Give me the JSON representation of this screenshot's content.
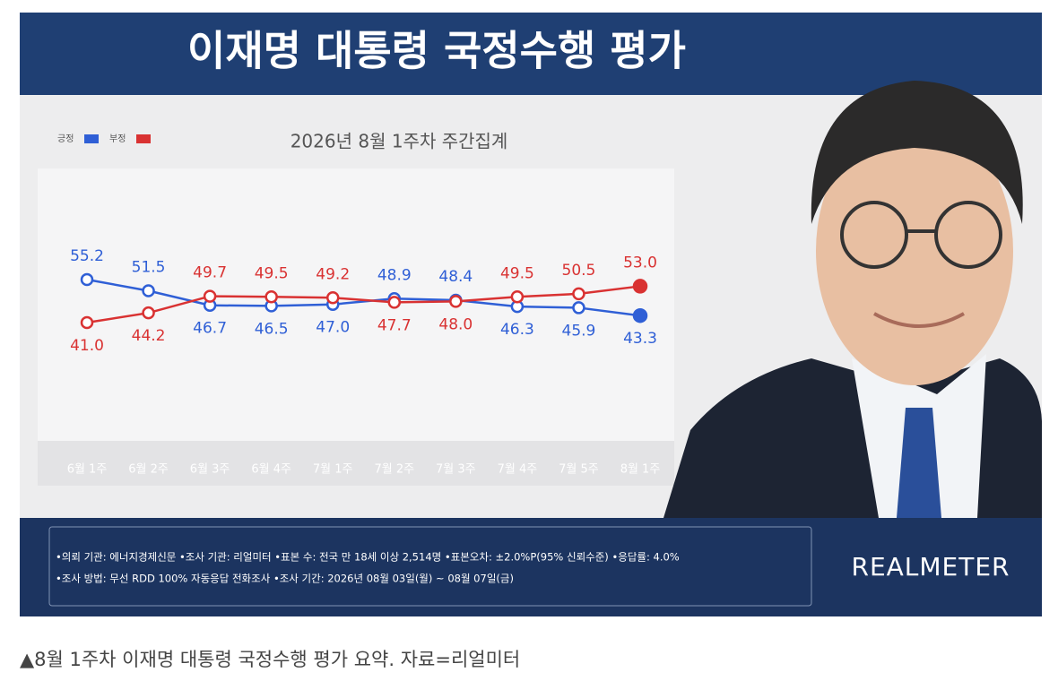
{
  "chart_data": {
    "type": "line",
    "title": "이재명 대통령 국정수행 평가",
    "subtitle": "2026년 8월 1주차 주간집계",
    "categories": [
      "6월 1주",
      "6월 2주",
      "6월 3주",
      "6월 4주",
      "7월 1주",
      "7월 2주",
      "7월 3주",
      "7월 4주",
      "7월 5주",
      "8월 1주"
    ],
    "series": [
      {
        "name": "긍정",
        "color": "#2f5fd6",
        "values": [
          55.2,
          51.5,
          46.7,
          46.5,
          47,
          48.9,
          48.4,
          46.3,
          45.9,
          43.3
        ],
        "value_labels": [
          "55.2",
          "51.5",
          "46.7",
          "46.5",
          "47.0",
          "48.9",
          "48.4",
          "46.3",
          "45.9",
          "43.3"
        ]
      },
      {
        "name": "부정",
        "color": "#d93232",
        "values": [
          41,
          44.2,
          49.7,
          49.5,
          49.2,
          47.7,
          48,
          49.5,
          50.5,
          53
        ],
        "value_labels": [
          "41.0",
          "44.2",
          "49.7",
          "49.5",
          "49.2",
          "47.7",
          "48.0",
          "49.5",
          "50.5",
          "53.0"
        ]
      }
    ]
  },
  "footer": {
    "notes": [
      "•의뢰 기관: 에너지경제신문 •조사 기관: 리얼미터 •표본 수: 전국 만 18세 이상 2,514명 •표본오차: ±2.0%P(95% 신뢰수준) •응답률: 4.0%",
      "•조사 방법: 무선 RDD 100% 자동응답 전화조사 •조사 기간: 2026년 08월 03일(월) ~ 08월 07일(금)"
    ],
    "logo": "REALMETER"
  },
  "caption": "▲8월 1주차 이재명 대통령 국정수행 평가 요약. 자료=리얼미터"
}
